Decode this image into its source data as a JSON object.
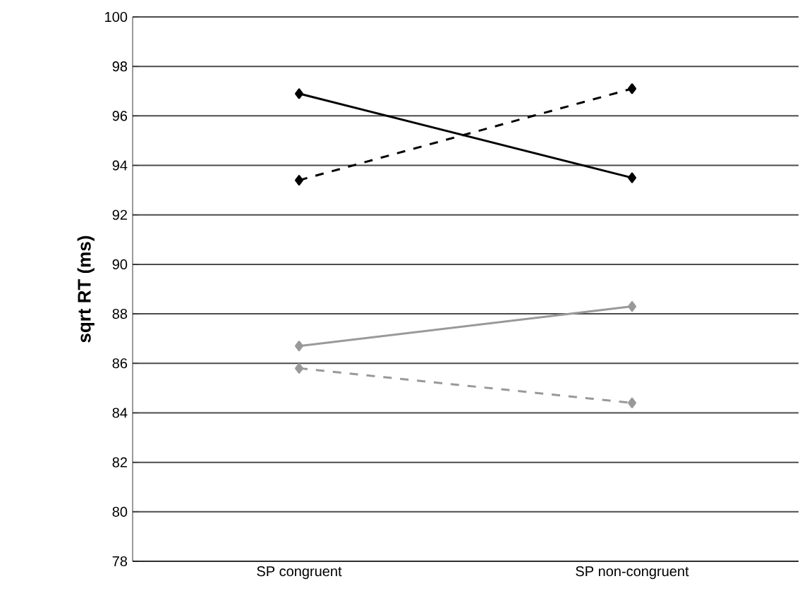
{
  "chart_data": {
    "type": "line",
    "ylabel": "sqrt RT (ms)",
    "categories": [
      "SP congruent",
      "SP non-congruent"
    ],
    "series": [
      {
        "color": "#000000",
        "values": [
          96.9,
          93.5
        ],
        "line_style": "solid"
      },
      {
        "color": "#000000",
        "values": [
          93.4,
          97.1
        ],
        "line_style": "dashed"
      },
      {
        "color": "#999999",
        "values": [
          86.7,
          88.3
        ],
        "line_style": "solid"
      },
      {
        "color": "#999999",
        "values": [
          85.8,
          84.4
        ],
        "line_style": "dashed"
      }
    ],
    "ylim": [
      78,
      100
    ],
    "yticks": [
      78,
      80,
      82,
      84,
      86,
      88,
      90,
      92,
      94,
      96,
      98,
      100
    ],
    "grid": "y",
    "marker": "diamond"
  }
}
